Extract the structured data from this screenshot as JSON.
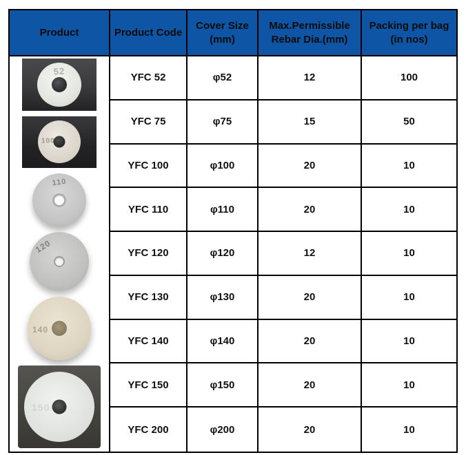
{
  "header": {
    "columns": [
      {
        "label": "Product"
      },
      {
        "label": "Product Code"
      },
      {
        "label": "Cover Size\n(mm)"
      },
      {
        "label": "Max.Permissible\nRebar Dia.(mm)"
      },
      {
        "label": "Packing per bag\n(in nos)"
      }
    ]
  },
  "rows": [
    {
      "code": "YFC 52",
      "cover": "φ52",
      "rebar": "12",
      "packing": "100"
    },
    {
      "code": "YFC 75",
      "cover": "φ75",
      "rebar": "15",
      "packing": "50"
    },
    {
      "code": "YFC 100",
      "cover": "φ100",
      "rebar": "20",
      "packing": "10"
    },
    {
      "code": "YFC 110",
      "cover": "φ110",
      "rebar": "20",
      "packing": "10"
    },
    {
      "code": "YFC 120",
      "cover": "φ120",
      "rebar": "12",
      "packing": "10"
    },
    {
      "code": "YFC 130",
      "cover": "φ130",
      "rebar": "20",
      "packing": "10"
    },
    {
      "code": "YFC 140",
      "cover": "φ140",
      "rebar": "20",
      "packing": "10"
    },
    {
      "code": "YFC 150",
      "cover": "φ150",
      "rebar": "20",
      "packing": "10"
    },
    {
      "code": "YFC 200",
      "cover": "φ200",
      "rebar": "20",
      "packing": "10"
    }
  ],
  "product_images": [
    {
      "marking": "52",
      "type": "photo-dark-background"
    },
    {
      "marking": "100",
      "type": "photo-dark-background"
    },
    {
      "marking": "110",
      "type": "cutout-gray-disc"
    },
    {
      "marking": "120",
      "type": "cutout-gray-disc"
    },
    {
      "marking": "140",
      "type": "cutout-cream-disc"
    },
    {
      "marking": "150",
      "type": "photo-gray-background"
    }
  ],
  "colors": {
    "header_bg": "#0e56a5",
    "header_text": "#0a0a0a",
    "border": "#000000",
    "body_bg": "#ffffff"
  }
}
